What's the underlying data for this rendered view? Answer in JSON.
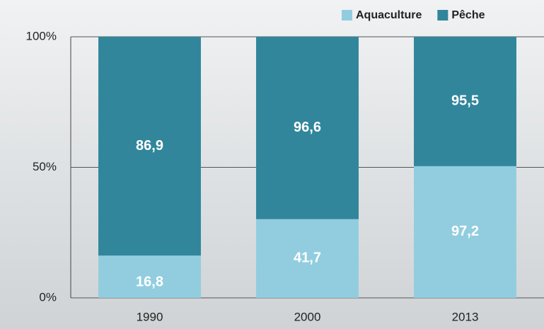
{
  "chart_data": {
    "type": "bar",
    "stacked": "percent",
    "categories": [
      "1990",
      "2000",
      "2013"
    ],
    "series": [
      {
        "name": "Aquaculture",
        "color": "#92cddf",
        "values": [
          16.8,
          41.7,
          97.2
        ],
        "value_labels": [
          "16,8",
          "41,7",
          "97,2"
        ]
      },
      {
        "name": "Pêche",
        "color": "#31869b",
        "values": [
          86.9,
          96.6,
          95.5
        ],
        "value_labels": [
          "86,9",
          "96,6",
          "95,5"
        ]
      }
    ],
    "ylim": [
      0,
      100
    ],
    "yticks": [
      {
        "value": 0,
        "label": "0%"
      },
      {
        "value": 50,
        "label": "50%"
      },
      {
        "value": 100,
        "label": "100%"
      }
    ],
    "grid": true,
    "legend": "top-right"
  }
}
